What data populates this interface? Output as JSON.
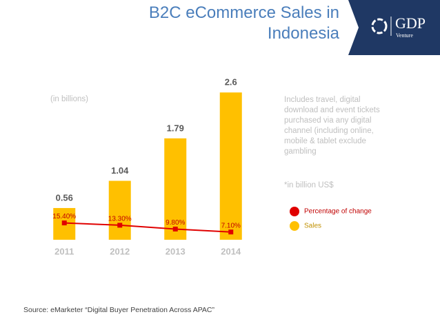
{
  "header": {
    "title": "B2C eCommerce Sales in Indonesia",
    "logo": "GDP",
    "logo_sub": "Venture"
  },
  "chart_data": {
    "type": "bar",
    "subtitle": "(in billions)",
    "categories": [
      "2011",
      "2012",
      "2013",
      "2014"
    ],
    "series": [
      {
        "name": "Sales",
        "color": "#ffc000",
        "values": [
          0.56,
          1.04,
          1.79,
          2.6
        ]
      },
      {
        "name": "Percentage of change",
        "color": "#e00000",
        "type": "line",
        "axis": "y2",
        "values": [
          15.4,
          13.3,
          9.8,
          7.1
        ],
        "value_labels": [
          "15.40%",
          "13.30%",
          "9.80%",
          "7.10%"
        ]
      }
    ],
    "ylim": [
      0,
      2.7
    ],
    "y2lim": [
      0,
      140
    ]
  },
  "notes": [
    "Includes travel, digital download and event tickets purchased via any digital channel (including online, mobile & tablet exclude gambling",
    "*in billion US$"
  ],
  "source": "Source: eMarketer “Digital Buyer Penetration Across  APAC”"
}
